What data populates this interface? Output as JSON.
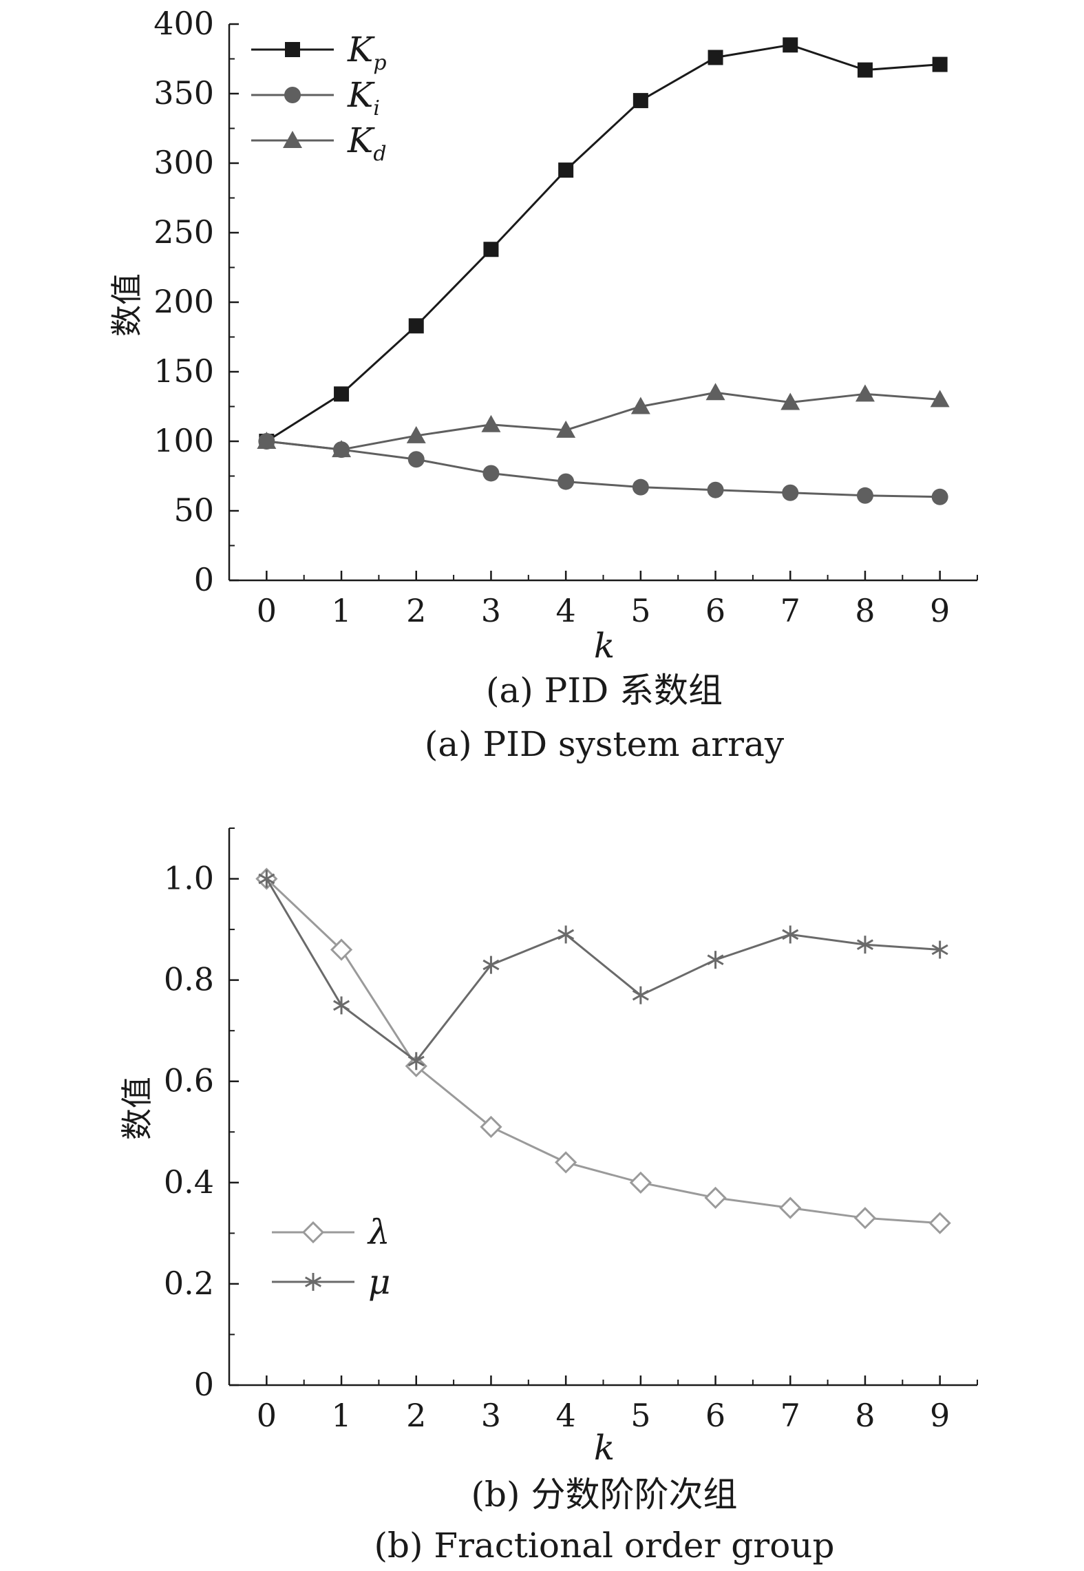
{
  "chart_data": [
    {
      "type": "line",
      "caption_cn": "(a) PID 系数组",
      "caption_en": "(a) PID system array",
      "xlabel": "k",
      "ylabel": "数值",
      "xlim": [
        -0.5,
        9.5
      ],
      "ylim": [
        0,
        400
      ],
      "x_ticks": [
        "0",
        "1",
        "2",
        "3",
        "4",
        "5",
        "6",
        "7",
        "8",
        "9"
      ],
      "y_ticks": [
        "0",
        "50",
        "100",
        "150",
        "200",
        "250",
        "300",
        "350",
        "400"
      ],
      "legend_position": "top-left",
      "x": [
        0,
        1,
        2,
        3,
        4,
        5,
        6,
        7,
        8,
        9
      ],
      "series": [
        {
          "name": "K",
          "sub": "p",
          "marker": "square",
          "color": "#1a1a1a",
          "values": [
            100,
            134,
            183,
            238,
            295,
            345,
            376,
            385,
            367,
            371
          ]
        },
        {
          "name": "K",
          "sub": "i",
          "marker": "circle",
          "color": "#5f5f5f",
          "values": [
            100,
            94,
            87,
            77,
            71,
            67,
            65,
            63,
            61,
            60
          ]
        },
        {
          "name": "K",
          "sub": "d",
          "marker": "triangle",
          "color": "#5f5f5f",
          "values": [
            100,
            94,
            104,
            112,
            108,
            125,
            135,
            128,
            134,
            130
          ]
        }
      ]
    },
    {
      "type": "line",
      "caption_cn": "(b) 分数阶阶次组",
      "caption_en": "(b) Fractional order group",
      "xlabel": "k",
      "ylabel": "数值",
      "xlim": [
        -0.5,
        9.5
      ],
      "ylim": [
        0,
        1.1
      ],
      "x_ticks": [
        "0",
        "1",
        "2",
        "3",
        "4",
        "5",
        "6",
        "7",
        "8",
        "9"
      ],
      "y_ticks": [
        "0",
        "0.2",
        "0.4",
        "0.6",
        "0.8",
        "1.0"
      ],
      "legend_position": "lower-left",
      "x": [
        0,
        1,
        2,
        3,
        4,
        5,
        6,
        7,
        8,
        9
      ],
      "series": [
        {
          "name": "λ",
          "marker": "diamond",
          "color": "#9a9a9a",
          "values": [
            1.0,
            0.86,
            0.63,
            0.51,
            0.44,
            0.4,
            0.37,
            0.35,
            0.33,
            0.32
          ]
        },
        {
          "name": "μ",
          "marker": "asterisk",
          "color": "#6a6a6a",
          "values": [
            1.0,
            0.75,
            0.64,
            0.83,
            0.89,
            0.77,
            0.84,
            0.89,
            0.87,
            0.86
          ]
        }
      ]
    }
  ]
}
